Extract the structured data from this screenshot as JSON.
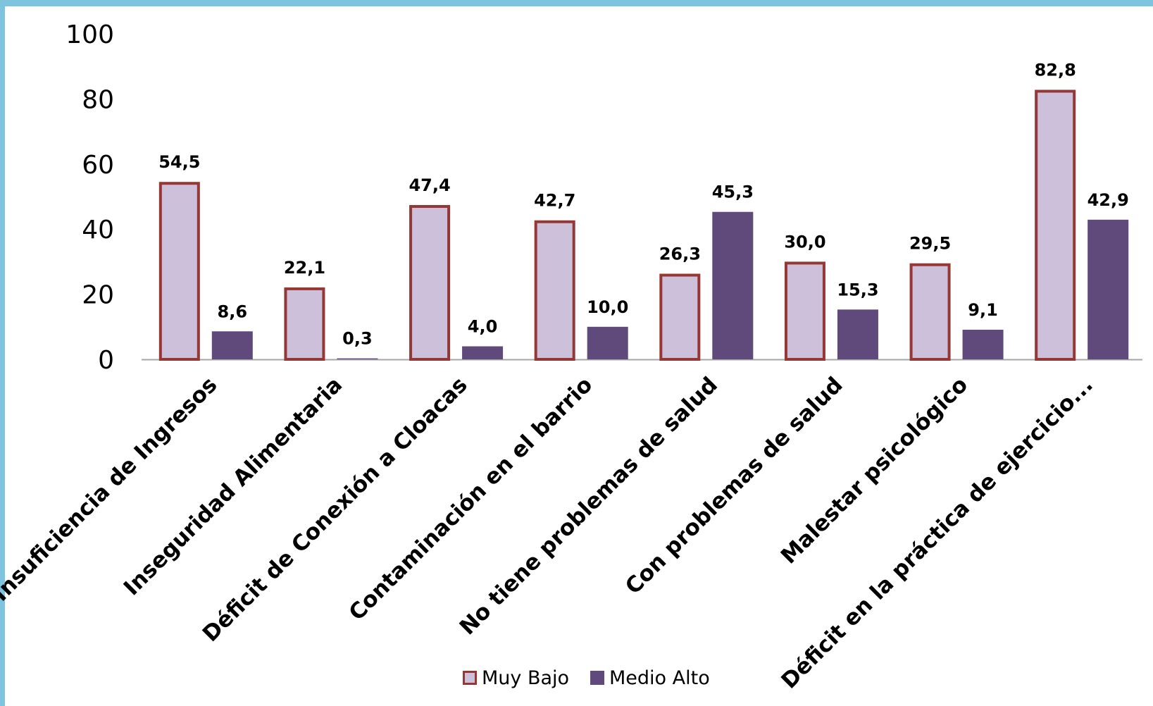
{
  "chart_data": {
    "type": "bar",
    "categories": [
      "Insuficiencia de Ingresos",
      "Inseguridad Alimentaria",
      "Déficit de Conexión a Cloacas",
      "Contaminación en el barrio",
      "No tiene problemas de salud",
      "Con problemas de salud",
      "Malestar psicológico",
      "Déficit en la práctica de ejercicio..."
    ],
    "series": [
      {
        "name": "Muy Bajo",
        "values": [
          54.5,
          22.1,
          47.4,
          42.7,
          26.3,
          30.0,
          29.5,
          82.8
        ],
        "labels": [
          "54,5",
          "22,1",
          "47,4",
          "42,7",
          "26,3",
          "30,0",
          "29,5",
          "82,8"
        ],
        "fill": "#ccc0da",
        "stroke": "#953735"
      },
      {
        "name": "Medio Alto",
        "values": [
          8.6,
          0.3,
          4.0,
          10.0,
          45.3,
          15.3,
          9.1,
          42.9
        ],
        "labels": [
          "8,6",
          "0,3",
          "4,0",
          "10,0",
          "45,3",
          "15,3",
          "9,1",
          "42,9"
        ],
        "fill": "#604a7b",
        "stroke": "#604a7b"
      }
    ],
    "yticks": [
      "0",
      "20",
      "40",
      "60",
      "80",
      "100"
    ],
    "ylim": [
      0,
      100
    ],
    "grid": false,
    "legend_position": "bottom",
    "frame_color": "#7ec4df",
    "axis_color": "#a6a6a6"
  }
}
